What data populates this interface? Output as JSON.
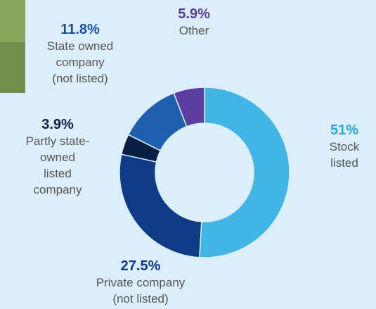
{
  "chart_data": {
    "type": "donut",
    "categories": [
      "Stock\nlisted",
      "Private company\n(not listed)",
      "Partly state-\nowned\nlisted\ncompany",
      "State owned\ncompany\n(not listed)",
      "Other"
    ],
    "values": [
      51,
      27.5,
      3.9,
      11.8,
      5.9
    ],
    "value_labels": [
      "51%",
      "27.5%",
      "3.9%",
      "11.8%",
      "5.9%"
    ],
    "colors": [
      "#41b6e6",
      "#0e3a86",
      "#0a1f44",
      "#1e5fb0",
      "#5a3d9e"
    ],
    "label_colors": [
      "#2aa9e0",
      "#0e3a86",
      "#0a1f44",
      "#1a4fa0",
      "#5a3d9e"
    ]
  }
}
